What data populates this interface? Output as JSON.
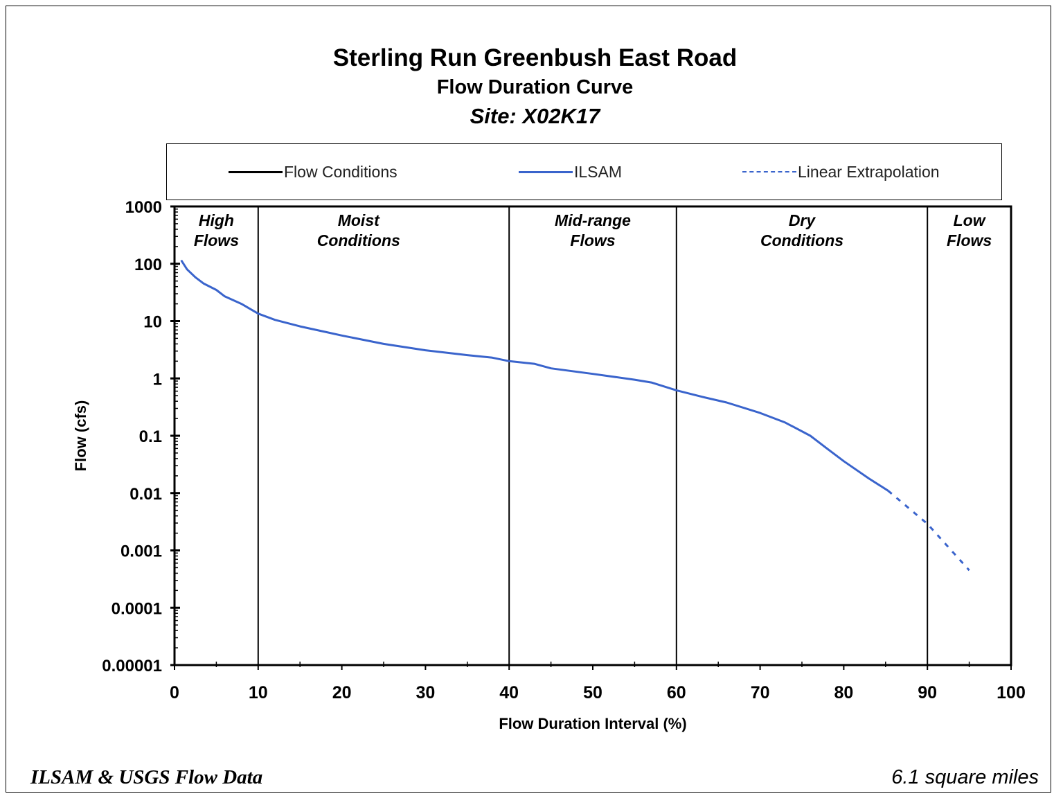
{
  "chart_data": {
    "type": "line",
    "title": "Sterling Run Greenbush East Road",
    "subtitle": "Flow Duration Curve",
    "site": "Site:  X02K17",
    "xlabel": "Flow Duration Interval (%)",
    "ylabel": "Flow  (cfs)",
    "xlim": [
      0,
      100
    ],
    "ylim": [
      1e-05,
      1000
    ],
    "yscale": "log",
    "x_ticks": [
      0,
      10,
      20,
      30,
      40,
      50,
      60,
      70,
      80,
      90,
      100
    ],
    "x_tick_labels": [
      "0",
      "10",
      "20",
      "30",
      "40",
      "50",
      "60",
      "70",
      "80",
      "90",
      "100"
    ],
    "y_ticks": [
      1e-05,
      0.0001,
      0.001,
      0.01,
      0.1,
      1,
      10,
      100,
      1000
    ],
    "y_tick_labels": [
      "0.00001",
      "0.0001",
      "0.001",
      "0.01",
      "0.1",
      "1",
      "10",
      "100",
      "1000"
    ],
    "grid": false,
    "legend_position": "top",
    "legend": [
      {
        "label": "Flow Conditions",
        "style": "solid",
        "color": "#000000"
      },
      {
        "label": "ILSAM",
        "style": "solid",
        "color": "#3a64cc"
      },
      {
        "label": "Linear Extrapolation",
        "style": "dashed",
        "color": "#3a64cc"
      }
    ],
    "zone_boundaries": [
      10,
      40,
      60,
      90
    ],
    "zones": [
      {
        "line1": "High",
        "line2": "Flows",
        "center": 5
      },
      {
        "line1": "Moist",
        "line2": "Conditions",
        "center": 22
      },
      {
        "line1": "Mid-range",
        "line2": "Flows",
        "center": 50
      },
      {
        "line1": "Dry",
        "line2": "Conditions",
        "center": 75
      },
      {
        "line1": "Low",
        "line2": "Flows",
        "center": 95
      }
    ],
    "series": [
      {
        "name": "ILSAM",
        "style": "solid",
        "color": "#3a64cc",
        "x": [
          0.8,
          1.5,
          2.5,
          3.5,
          5,
          6,
          8,
          10,
          12,
          15,
          18,
          20,
          25,
          30,
          35,
          38,
          40,
          43,
          45,
          50,
          55,
          57,
          60,
          63,
          66,
          70,
          73,
          76,
          78,
          80,
          83,
          85.3
        ],
        "y": [
          115,
          80,
          58,
          45,
          35,
          27,
          20,
          13.5,
          10.5,
          8.1,
          6.5,
          5.6,
          4.0,
          3.1,
          2.55,
          2.3,
          2.0,
          1.8,
          1.5,
          1.2,
          0.95,
          0.85,
          0.62,
          0.48,
          0.38,
          0.25,
          0.17,
          0.1,
          0.06,
          0.036,
          0.018,
          0.011
        ]
      },
      {
        "name": "Linear Extrapolation",
        "style": "dashed",
        "color": "#3a64cc",
        "x": [
          85.3,
          90,
          95
        ],
        "y": [
          0.011,
          0.0029,
          0.00045
        ]
      }
    ]
  },
  "footer": {
    "left": "ILSAM & USGS Flow Data",
    "right": "6.1 square miles"
  }
}
